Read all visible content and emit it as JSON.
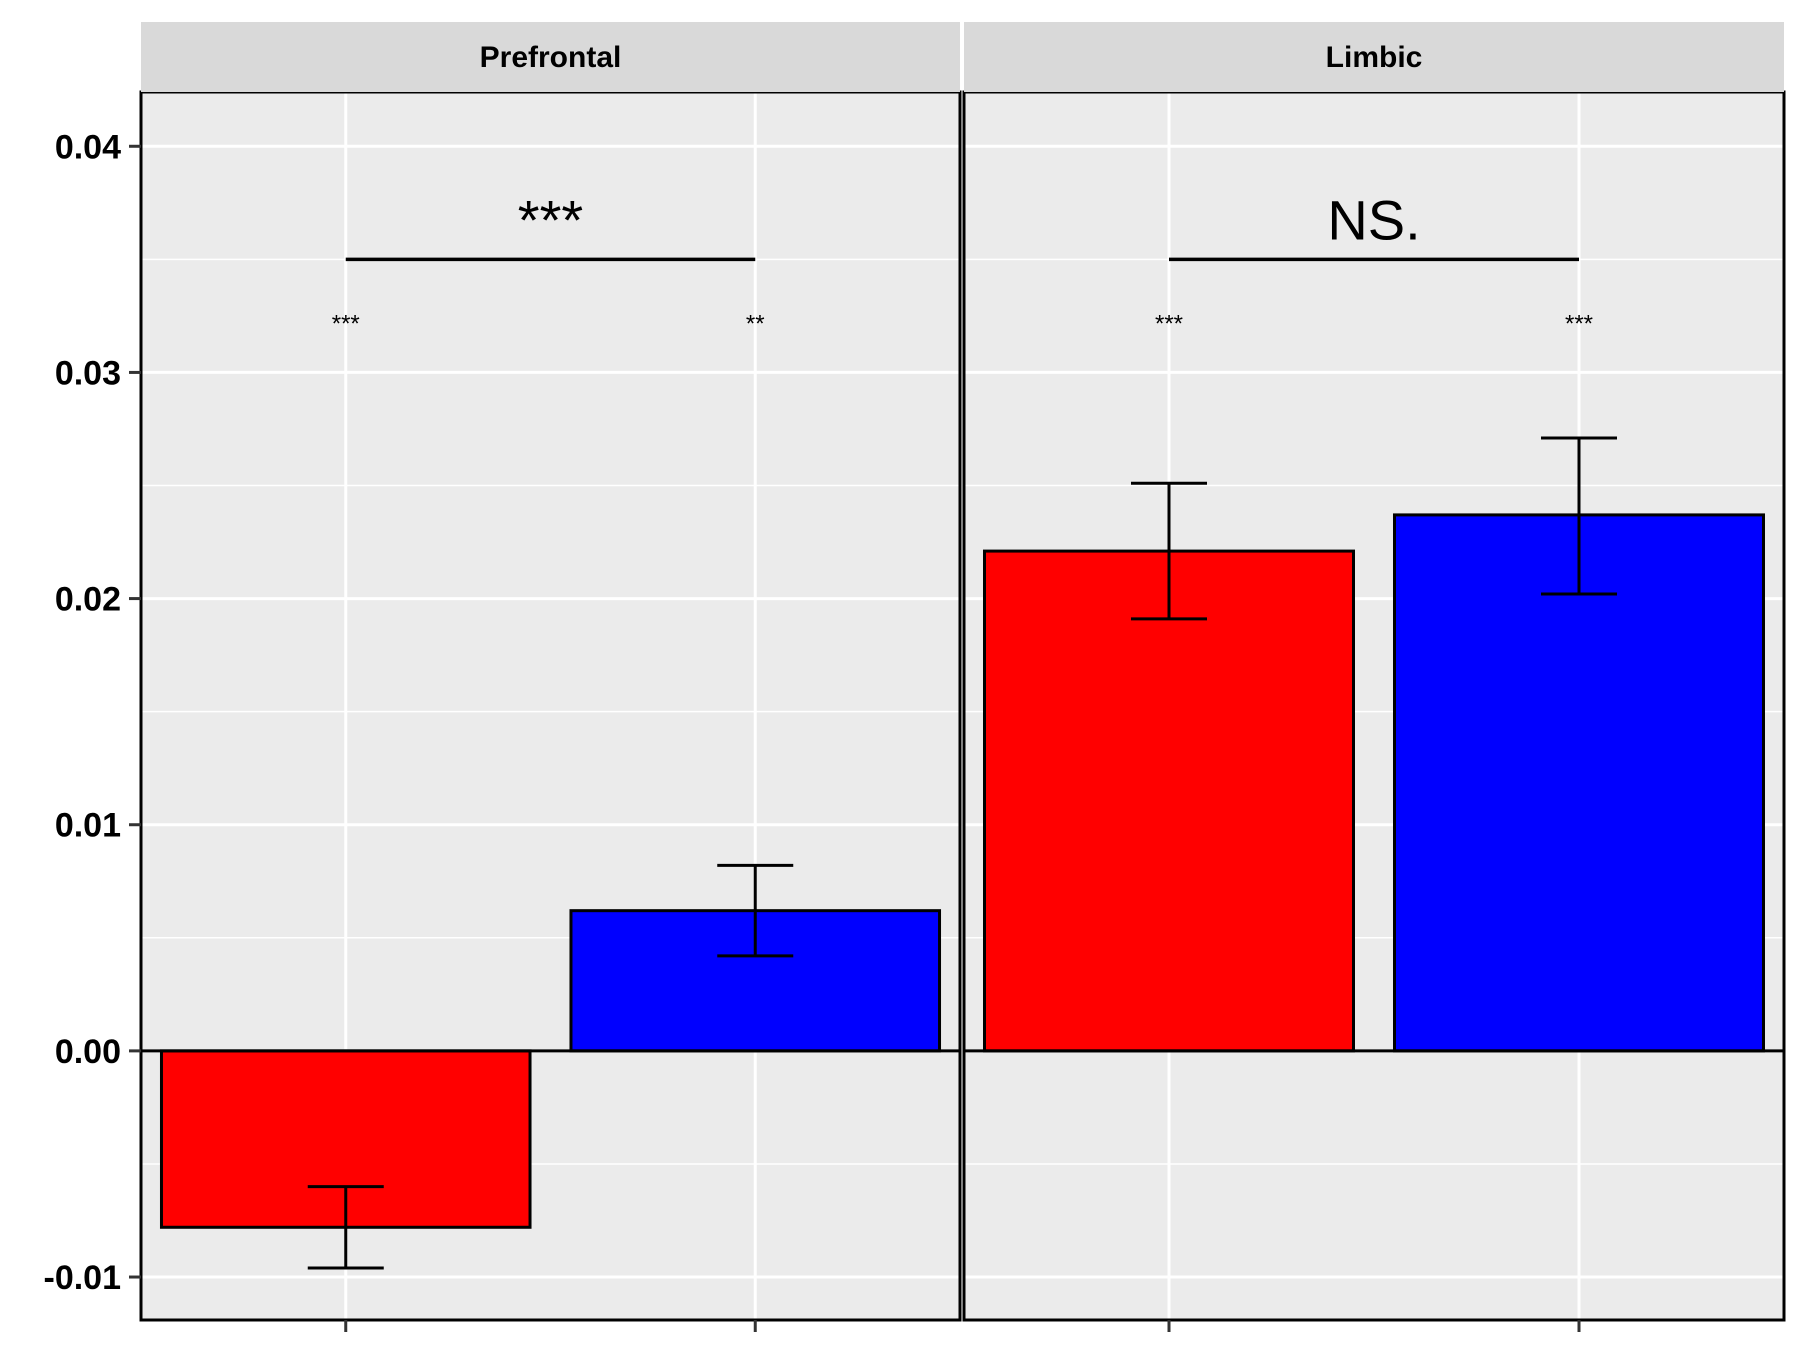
{
  "chart_data": {
    "type": "bar",
    "facets": [
      {
        "name": "Prefrontal",
        "bars": [
          {
            "value": -0.0078,
            "err_low": -0.0096,
            "err_high": -0.006,
            "color": "#ff0000",
            "sig": "***"
          },
          {
            "value": 0.0062,
            "err_low": 0.0042,
            "err_high": 0.0082,
            "color": "#0000ff",
            "sig": "**"
          }
        ],
        "comparison": {
          "label": "***",
          "y": 0.035
        }
      },
      {
        "name": "Limbic",
        "bars": [
          {
            "value": 0.0221,
            "err_low": 0.0191,
            "err_high": 0.0251,
            "color": "#ff0000",
            "sig": "***"
          },
          {
            "value": 0.0237,
            "err_low": 0.0202,
            "err_high": 0.0271,
            "color": "#0000ff",
            "sig": "***"
          }
        ],
        "comparison": {
          "label": "NS.",
          "y": 0.035
        }
      }
    ],
    "y_ticks": [
      {
        "value": 0.04,
        "label": "0.04"
      },
      {
        "value": 0.03,
        "label": "0.03"
      },
      {
        "value": 0.02,
        "label": "0.02"
      },
      {
        "value": 0.01,
        "label": "0.01"
      },
      {
        "value": 0.0,
        "label": "0.00"
      },
      {
        "value": -0.01,
        "label": "-0.01"
      }
    ],
    "ylim": [
      -0.0119,
      0.0424
    ],
    "title": "",
    "xlabel": "",
    "ylabel": "",
    "grid": true,
    "legend": "none"
  }
}
